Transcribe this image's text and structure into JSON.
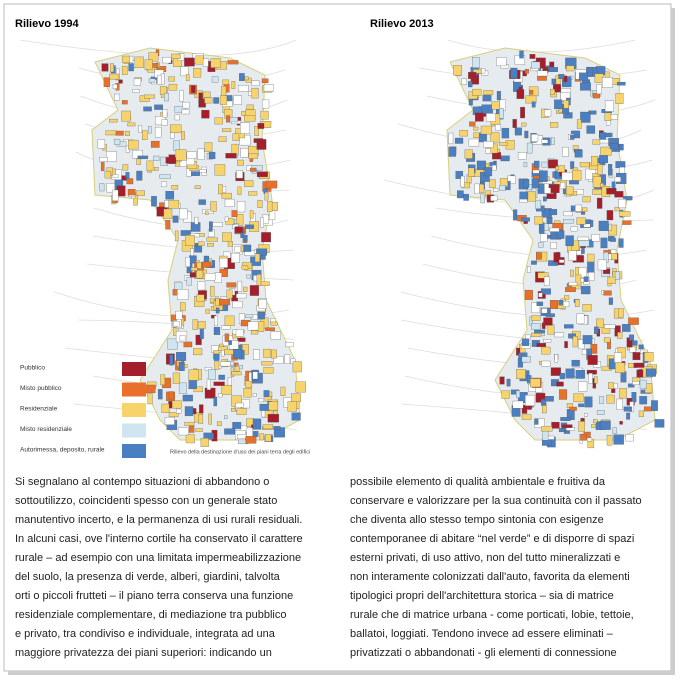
{
  "maps": [
    {
      "title": "Rilievo 1994"
    },
    {
      "title": "Rilievo 2013"
    }
  ],
  "legend": {
    "items": [
      "Pubblico",
      "Misto pubblico",
      "Residenziale",
      "Misto residenziale",
      "Autorimessa, deposito, rurale"
    ],
    "caption": "Rilievo della destinazione d'uso dei piani terra degli edifici"
  },
  "columns": [
    [
      " Si segnalano al contempo situazioni di abbandono o",
      "sottoutilizzo, coincidenti spesso con un generale stato",
      "manutentivo incerto, e la permanenza di usi rurali residuali.",
      "In alcuni casi, ove l'interno cortile ha conservato il carattere",
      "rurale – ad esempio con una limitata impermeabilizzazione",
      "del suolo, la presenza di verde, alberi, giardini, talvolta",
      "orti o piccoli frutteti – il piano terra conserva una funzione",
      "residenziale complementare, di mediazione tra pubblico",
      "e privato, tra condiviso e individuale, integrata ad una",
      "maggiore privatezza dei piani superiori: indicando un"
    ],
    [
      "possibile elemento di qualità ambientale e fruitiva da",
      "conservare e valorizzare per la sua continuità con il passato",
      "che diventa allo stesso tempo sintonia con esigenze",
      "contemporanee di abitare “nel verde” e di disporre di spazi",
      "esterni privati, di uso attivo, non del tutto mineralizzati e",
      "non interamente colonizzati dall'auto, favorita da elementi",
      "tipologici propri dell'architettura storica – sia di matrice",
      "rurale che di matrice urbana - come porticati, lobie, tettoie,",
      "ballatoi, loggiati. Tendono invece ad essere eliminati –",
      "privatizzati o abbandonati - gli elementi di connessione"
    ]
  ]
}
